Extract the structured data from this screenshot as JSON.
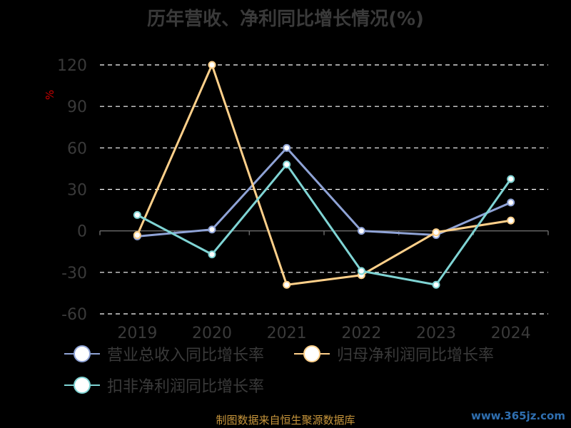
{
  "chart_data": {
    "type": "line",
    "title": "历年营收、净利同比增长情况(%)",
    "ylabel": "%",
    "categories": [
      "2019",
      "2020",
      "2021",
      "2022",
      "2023",
      "2024"
    ],
    "y_ticks": [
      120,
      90,
      60,
      30,
      0,
      -30,
      -60
    ],
    "ylim": [
      -60,
      120
    ],
    "grid": true,
    "legend_position": "bottom",
    "series": [
      {
        "name": "营业总收入同比增长率",
        "color": "#8fa3d6",
        "values": [
          -4.0,
          1.0,
          60.0,
          0.0,
          -3.0,
          20.5
        ]
      },
      {
        "name": "归母净利润同比增长率",
        "color": "#ffd08a",
        "values": [
          -3.0,
          120.0,
          -39.0,
          -32.0,
          -1.0,
          7.5
        ]
      },
      {
        "name": "扣非净利润同比增长率",
        "color": "#7fd4d4",
        "values": [
          11.5,
          -17.0,
          48.0,
          -29.0,
          -39.0,
          37.5
        ]
      }
    ]
  },
  "footer": {
    "source": "制图数据来自恒生聚源数据库",
    "watermark": "www.365jz.com"
  },
  "colors": {
    "background": "#000000",
    "grid": "#ffffff",
    "axis_text": "#3a3a3a",
    "ylabel": "#cc0000"
  }
}
